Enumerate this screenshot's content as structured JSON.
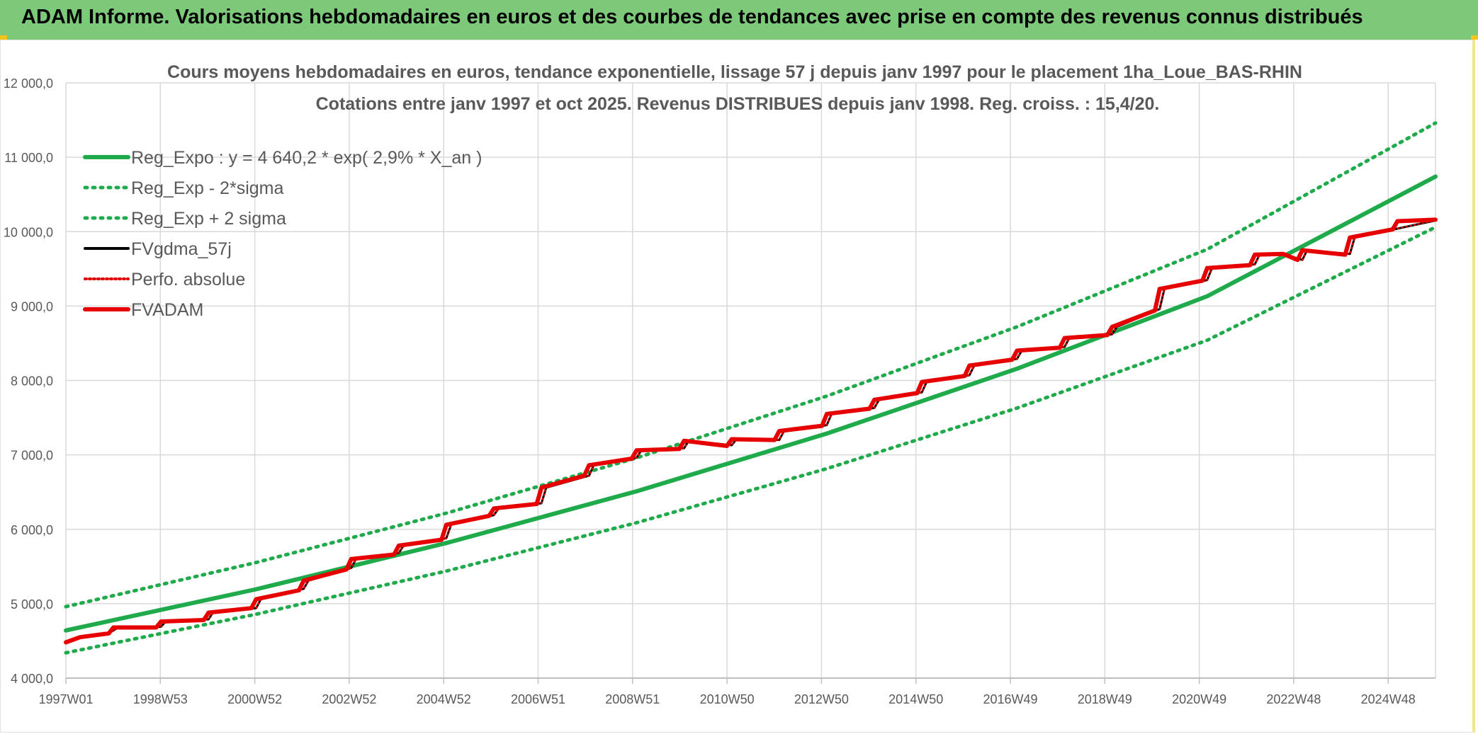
{
  "banner": {
    "title": "ADAM Informe. Valorisations hebdomadaires en euros et des courbes de tendances avec prise en compte des revenus connus distribués"
  },
  "chart_data": {
    "type": "line",
    "title": "Cours moyens hebdomadaires en euros, tendance exponentielle, lissage 57 j depuis janv 1997 pour le placement 1ha_Loue_BAS-RHIN",
    "subtitle": "Cotations entre janv 1997 et oct 2025. Revenus DISTRIBUES depuis janv 1998. Reg. croiss. : 15,4/20.",
    "ylim": [
      4000,
      12000
    ],
    "xlim": [
      1997.0,
      2025.8
    ],
    "y_ticks": [
      "4 000,0",
      "5 000,0",
      "6 000,0",
      "7 000,0",
      "8 000,0",
      "9 000,0",
      "10 000,0",
      "11 000,0",
      "12 000,0"
    ],
    "y_tick_values": [
      4000,
      5000,
      6000,
      7000,
      8000,
      9000,
      10000,
      11000,
      12000
    ],
    "x_ticks": [
      "1997W01",
      "1998W53",
      "2000W52",
      "2002W52",
      "2004W52",
      "2006W51",
      "2008W51",
      "2010W50",
      "2012W50",
      "2014W50",
      "2016W49",
      "2018W49",
      "2020W49",
      "2022W48",
      "2024W48"
    ],
    "grid": true,
    "legend_position": "top-left",
    "series": [
      {
        "name": "Reg_Expo : y = 4 640,2 * exp( 2,9% *  X_an )",
        "color": "#1faa4b",
        "style": "solid",
        "x": [
          1997.0,
          2001.0,
          2005.0,
          2009.0,
          2013.0,
          2017.0,
          2021.0,
          2025.8
        ],
        "values": [
          4640,
          5194,
          5815,
          6510,
          7287,
          8158,
          9132,
          10740
        ]
      },
      {
        "name": "Reg_Exp - 2*sigma",
        "color": "#1faa4b",
        "style": "dotted",
        "x": [
          1997.0,
          2001.0,
          2005.0,
          2009.0,
          2013.0,
          2017.0,
          2021.0,
          2025.8
        ],
        "values": [
          4340,
          4858,
          5438,
          6088,
          6815,
          7629,
          8540,
          10060
        ]
      },
      {
        "name": "Reg_Exp + 2 sigma",
        "color": "#1faa4b",
        "style": "dotted",
        "x": [
          1997.0,
          2001.0,
          2005.0,
          2009.0,
          2013.0,
          2017.0,
          2021.0,
          2025.8
        ],
        "values": [
          4960,
          5553,
          6216,
          6959,
          7790,
          8721,
          9763,
          11460
        ]
      },
      {
        "name": "FVgdma_57j",
        "color": "#000000",
        "style": "solid",
        "x": [
          1997.0,
          1997.3,
          1997.9,
          1998.1,
          1999.0,
          1999.1,
          2000.0,
          2000.1,
          2001.0,
          2001.1,
          2002.0,
          2002.1,
          2003.0,
          2003.1,
          2004.0,
          2004.1,
          2005.0,
          2005.1,
          2006.0,
          2006.1,
          2007.0,
          2007.1,
          2008.0,
          2008.1,
          2009.0,
          2009.1,
          2010.0,
          2010.1,
          2011.0,
          2011.1,
          2012.0,
          2012.1,
          2013.0,
          2013.1,
          2014.0,
          2014.1,
          2015.0,
          2015.1,
          2016.0,
          2016.1,
          2017.0,
          2017.1,
          2018.0,
          2018.1,
          2019.0,
          2019.1,
          2020.0,
          2020.1,
          2021.0,
          2021.1,
          2022.0,
          2022.1,
          2022.6,
          2023.0,
          2023.1,
          2024.0,
          2024.1,
          2025.0,
          2025.8
        ],
        "values": [
          4480,
          4550,
          4600,
          4680,
          4690,
          4760,
          4790,
          4890,
          4940,
          5060,
          5200,
          5310,
          5480,
          5600,
          5680,
          5780,
          5880,
          6060,
          6190,
          6280,
          6350,
          6560,
          6720,
          6860,
          6960,
          7060,
          7090,
          7190,
          7130,
          7210,
          7200,
          7320,
          7400,
          7550,
          7630,
          7740,
          7840,
          7980,
          8070,
          8200,
          8290,
          8400,
          8450,
          8570,
          8620,
          8720,
          8960,
          9230,
          9350,
          9510,
          9560,
          9690,
          9700,
          9620,
          9750,
          9700,
          9920,
          10040,
          10150
        ]
      },
      {
        "name": "Perfo. absolue",
        "color": "#e00000",
        "style": "dotted",
        "x": [
          1997.0,
          1997.3,
          1997.9,
          1998.1,
          1999.0,
          1999.1,
          2000.0,
          2000.1,
          2001.0,
          2001.1,
          2002.0,
          2002.1,
          2003.0,
          2003.1,
          2004.0,
          2004.1,
          2005.0,
          2005.1,
          2006.0,
          2006.1,
          2007.0,
          2007.1,
          2008.0,
          2008.1,
          2009.0,
          2009.1,
          2010.0,
          2010.1,
          2011.0,
          2011.1,
          2012.0,
          2012.1,
          2013.0,
          2013.1,
          2014.0,
          2014.1,
          2015.0,
          2015.1,
          2016.0,
          2016.1,
          2017.0,
          2017.1,
          2018.0,
          2018.1,
          2019.0,
          2019.1,
          2020.0,
          2020.1,
          2021.0,
          2021.1,
          2022.0,
          2022.1,
          2022.6,
          2023.0,
          2023.1,
          2024.0,
          2024.1,
          2025.0,
          2025.8
        ],
        "values": [
          4480,
          4550,
          4600,
          4680,
          4690,
          4760,
          4790,
          4890,
          4940,
          5060,
          5200,
          5310,
          5480,
          5600,
          5680,
          5780,
          5880,
          6060,
          6190,
          6280,
          6350,
          6560,
          6720,
          6860,
          6960,
          7060,
          7090,
          7190,
          7130,
          7210,
          7200,
          7320,
          7400,
          7550,
          7630,
          7740,
          7840,
          7980,
          8070,
          8200,
          8290,
          8400,
          8450,
          8570,
          8620,
          8720,
          8960,
          9230,
          9350,
          9510,
          9560,
          9690,
          9700,
          9620,
          9750,
          9700,
          9920,
          10040,
          10150
        ]
      },
      {
        "name": "FVADAM",
        "color": "#e60000",
        "style": "solid",
        "x": [
          1997.0,
          1997.3,
          1997.9,
          1998.0,
          1998.9,
          1999.0,
          1999.9,
          2000.0,
          2000.9,
          2001.0,
          2001.9,
          2002.0,
          2002.9,
          2003.0,
          2003.9,
          2004.0,
          2004.9,
          2005.0,
          2005.9,
          2006.0,
          2006.9,
          2007.0,
          2007.9,
          2008.0,
          2008.9,
          2009.0,
          2009.9,
          2010.0,
          2010.9,
          2011.0,
          2011.9,
          2012.0,
          2012.9,
          2013.0,
          2013.9,
          2014.0,
          2014.9,
          2015.0,
          2015.9,
          2016.0,
          2016.9,
          2017.0,
          2017.9,
          2018.0,
          2018.9,
          2019.0,
          2019.9,
          2020.0,
          2020.9,
          2021.0,
          2021.9,
          2022.0,
          2022.6,
          2022.9,
          2023.0,
          2023.9,
          2024.0,
          2024.9,
          2025.0,
          2025.8
        ],
        "values": [
          4480,
          4550,
          4600,
          4680,
          4680,
          4760,
          4780,
          4880,
          4940,
          5060,
          5180,
          5310,
          5460,
          5600,
          5660,
          5780,
          5860,
          6060,
          6180,
          6280,
          6340,
          6560,
          6720,
          6860,
          6950,
          7060,
          7080,
          7190,
          7120,
          7210,
          7200,
          7320,
          7390,
          7550,
          7620,
          7740,
          7830,
          7980,
          8060,
          8200,
          8280,
          8400,
          8440,
          8570,
          8610,
          8720,
          8940,
          9230,
          9340,
          9510,
          9550,
          9690,
          9700,
          9620,
          9750,
          9690,
          9920,
          10030,
          10140,
          10160
        ]
      }
    ]
  }
}
